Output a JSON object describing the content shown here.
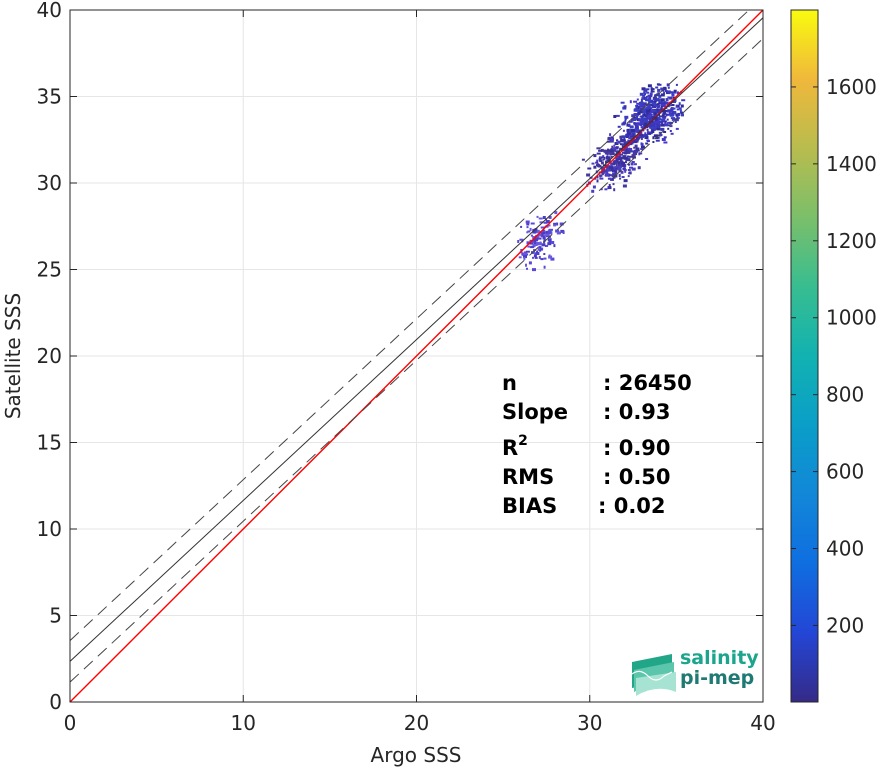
{
  "chart_data": {
    "type": "heatmap",
    "subtype": "2D density scatter (binned) with regression lines",
    "xlabel": "Argo SSS",
    "ylabel": "Satellite SSS",
    "xlim": [
      0,
      40
    ],
    "ylim": [
      0,
      40
    ],
    "xticks": [
      0,
      10,
      20,
      30,
      40
    ],
    "yticks": [
      0,
      5,
      10,
      15,
      20,
      25,
      30,
      35,
      40
    ],
    "grid": true,
    "colorbar": {
      "colormap": "parula",
      "range": [
        1,
        1800
      ],
      "ticks": [
        200,
        400,
        600,
        800,
        1000,
        1200,
        1400,
        1600
      ],
      "placement": "right"
    },
    "lines": [
      {
        "kind": "identity",
        "color": "#ff0000",
        "x": [
          0,
          40
        ],
        "y": [
          0,
          40
        ]
      },
      {
        "kind": "regression-fit",
        "color": "#333333",
        "style": "solid",
        "x": [
          0,
          40
        ],
        "y": [
          2.35,
          39.55
        ]
      },
      {
        "kind": "fit-plus-std",
        "color": "#444444",
        "style": "dashed",
        "x": [
          0,
          40
        ],
        "y": [
          3.55,
          40.75
        ]
      },
      {
        "kind": "fit-minus-std",
        "color": "#444444",
        "style": "dashed",
        "x": [
          0,
          40
        ],
        "y": [
          1.15,
          38.35
        ]
      }
    ],
    "density_regions": [
      {
        "x_range": [
          31.0,
          35.3
        ],
        "y_range": [
          31.5,
          35.8
        ],
        "center": [
          33.5,
          34.0
        ],
        "relative_density": "high"
      },
      {
        "x_range": [
          29.5,
          33.5
        ],
        "y_range": [
          29.5,
          33.0
        ],
        "center": [
          31.5,
          31.5
        ],
        "relative_density": "medium"
      },
      {
        "x_range": [
          25.8,
          28.5
        ],
        "y_range": [
          25.0,
          28.5
        ],
        "center": [
          27.0,
          26.8
        ],
        "relative_density": "low"
      }
    ],
    "stats": [
      {
        "label": "n",
        "value": ": 26450"
      },
      {
        "label": "Slope",
        "value": ": 0.93"
      },
      {
        "label": "R",
        "sup": "2",
        "value": ": 0.90"
      },
      {
        "label": "RMS",
        "value": ": 0.50"
      },
      {
        "label": "BIAS",
        "value": ": 0.02"
      }
    ]
  },
  "logo": {
    "line1": "salinity",
    "line2": "pi-mep",
    "colors": [
      "#1aa58c",
      "#1f7a73"
    ]
  }
}
